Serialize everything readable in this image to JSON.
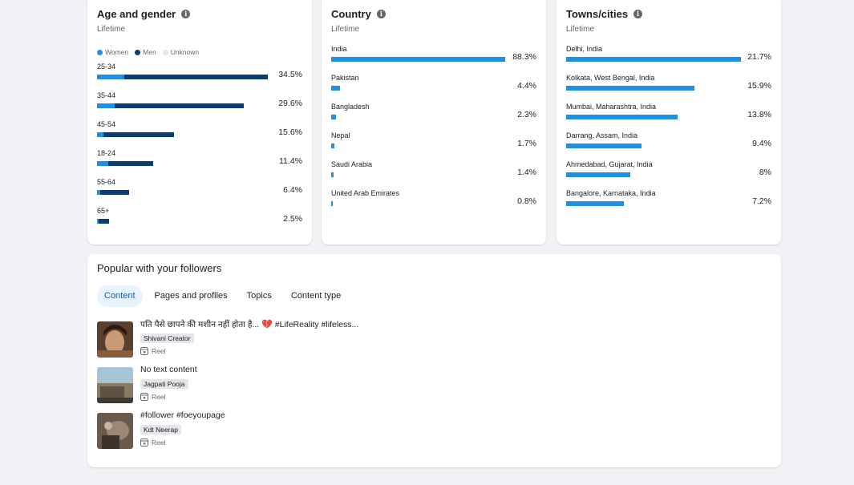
{
  "colors": {
    "women": "#1e8fe6",
    "men": "#0a3d73",
    "unknown": "#e4e6eb",
    "bar": "#1e8fe6"
  },
  "age_gender": {
    "title": "Age and gender",
    "subtitle": "Lifetime",
    "legend": [
      "Women",
      "Men",
      "Unknown"
    ],
    "rows": [
      {
        "label": "25-34",
        "value": "34.5%",
        "women": 5.5,
        "men": 29.0
      },
      {
        "label": "35-44",
        "value": "29.6%",
        "women": 3.5,
        "men": 26.1
      },
      {
        "label": "45-54",
        "value": "15.6%",
        "women": 1.3,
        "men": 14.3
      },
      {
        "label": "18-24",
        "value": "11.4%",
        "women": 2.3,
        "men": 9.1
      },
      {
        "label": "55-64",
        "value": "6.4%",
        "women": 0.7,
        "men": 5.7
      },
      {
        "label": "65+",
        "value": "2.5%",
        "women": 0.3,
        "men": 2.2
      }
    ]
  },
  "country": {
    "title": "Country",
    "subtitle": "Lifetime",
    "rows": [
      {
        "label": "India",
        "value": "88.3%",
        "pct": 88.3
      },
      {
        "label": "Pakistan",
        "value": "4.4%",
        "pct": 4.4
      },
      {
        "label": "Bangladesh",
        "value": "2.3%",
        "pct": 2.3
      },
      {
        "label": "Nepal",
        "value": "1.7%",
        "pct": 1.7
      },
      {
        "label": "Saudi Arabia",
        "value": "1.4%",
        "pct": 1.4
      },
      {
        "label": "United Arab Emirates",
        "value": "0.8%",
        "pct": 0.8
      }
    ]
  },
  "towns": {
    "title": "Towns/cities",
    "subtitle": "Lifetime",
    "rows": [
      {
        "label": "Delhi, India",
        "value": "21.7%",
        "pct": 21.7
      },
      {
        "label": "Kolkata, West Bengal, India",
        "value": "15.9%",
        "pct": 15.9
      },
      {
        "label": "Mumbai, Maharashtra, India",
        "value": "13.8%",
        "pct": 13.8
      },
      {
        "label": "Darrang, Assam, India",
        "value": "9.4%",
        "pct": 9.4
      },
      {
        "label": "Ahmedabad, Gujarat, India",
        "value": "8%",
        "pct": 8
      },
      {
        "label": "Bangalore, Karnataka, India",
        "value": "7.2%",
        "pct": 7.2
      }
    ]
  },
  "popular": {
    "title": "Popular with your followers",
    "tabs": [
      "Content",
      "Pages and profiles",
      "Topics",
      "Content type"
    ],
    "active_tab": "Content",
    "posts": [
      {
        "text": "पति पैसे छापने की मशीन नहीं होता है...",
        "emoji": "💔",
        "tags": " #LifeReality #lifeless...",
        "creator": "Shivani Creator",
        "type": "Reel"
      },
      {
        "text": "No text content",
        "emoji": "",
        "tags": "",
        "creator": "Jagpati Pooja",
        "type": "Reel"
      },
      {
        "text": "#follower #foeyoupage",
        "emoji": "",
        "tags": "",
        "creator": "Kdt Neerap",
        "type": "Reel"
      }
    ]
  }
}
